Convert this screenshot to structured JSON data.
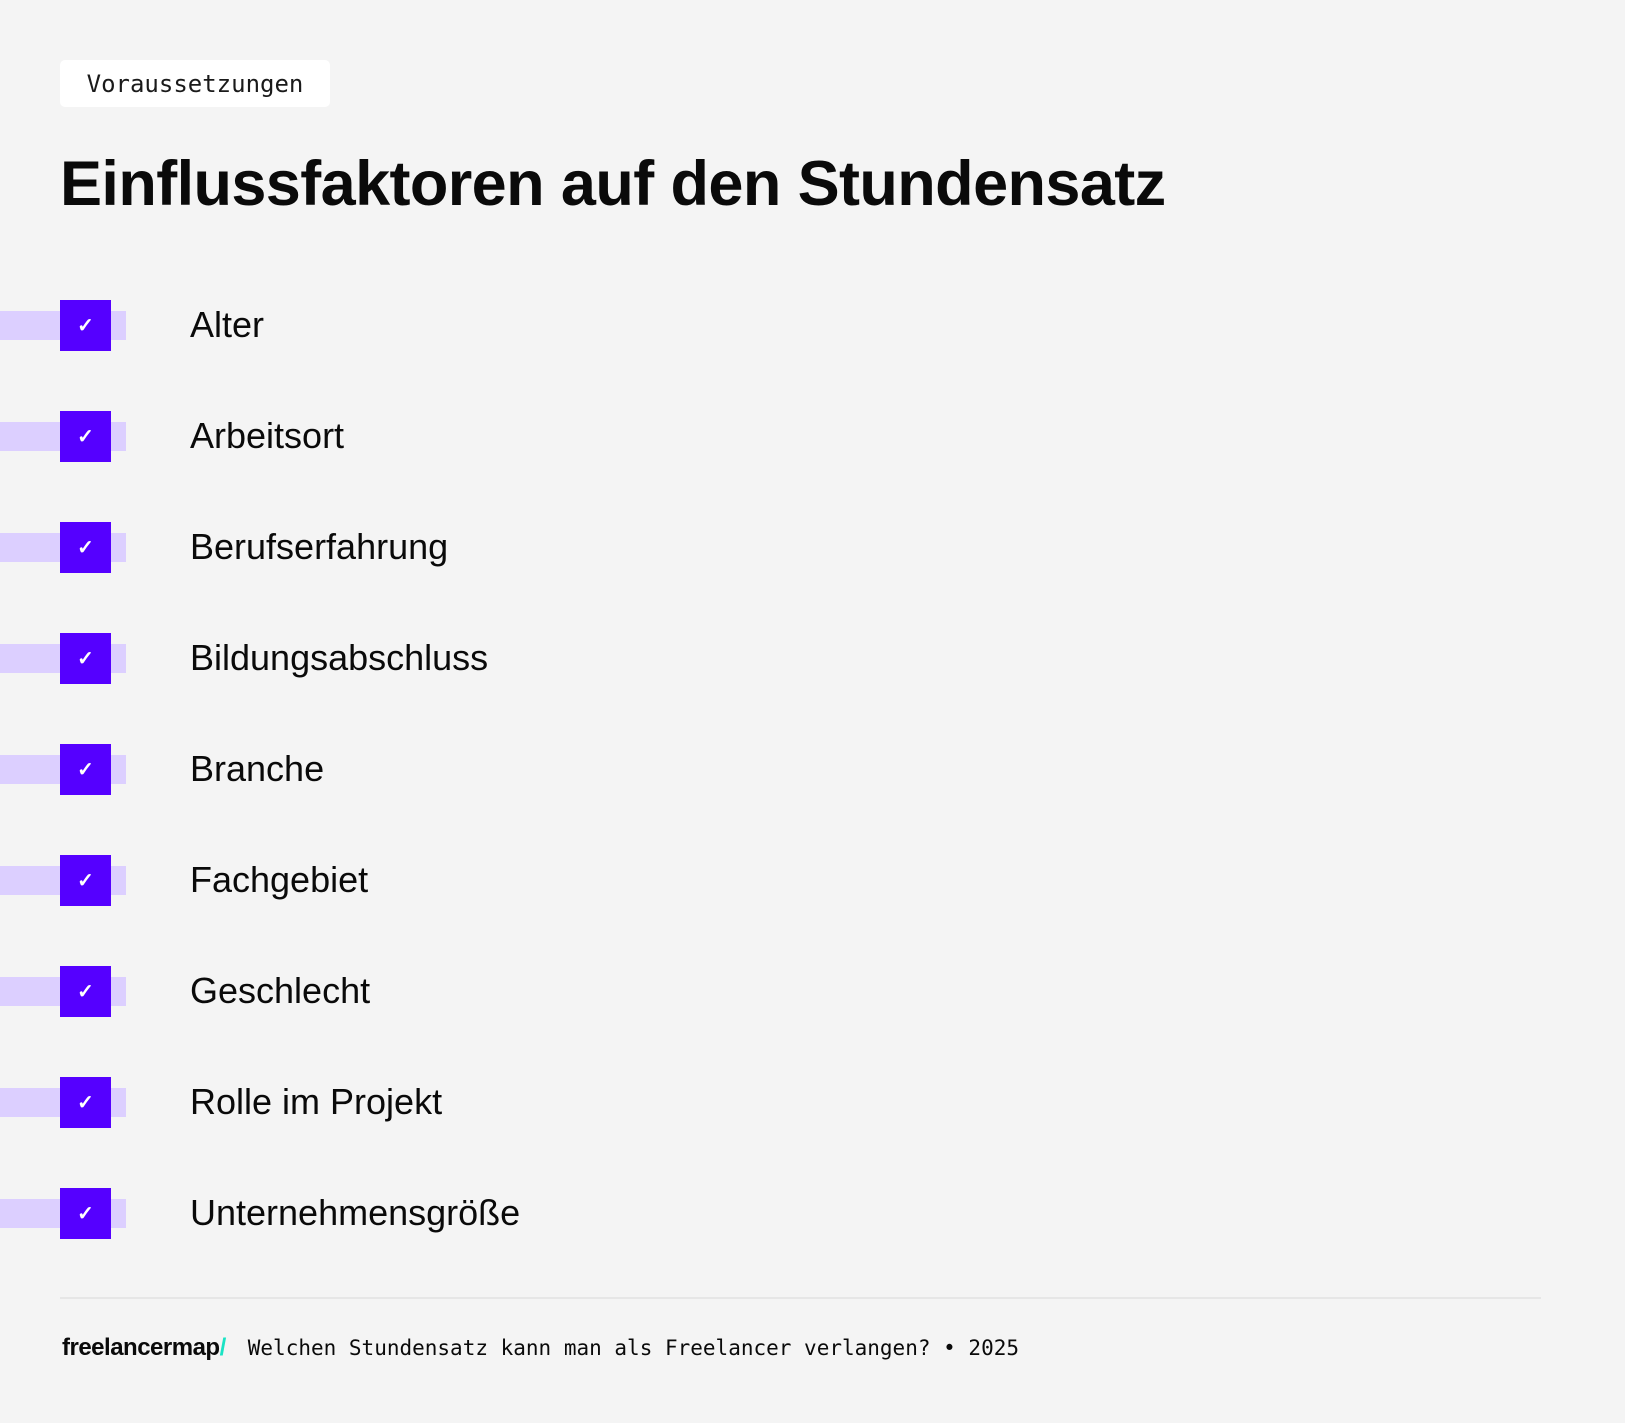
{
  "tag": "Voraussetzungen",
  "title": "Einflussfaktoren auf den Stundensatz",
  "colors": {
    "accent": "#5500ff",
    "accent_light": "#dccfff",
    "background": "#f4f4f4",
    "logo_slash": "#19e3c4"
  },
  "items": [
    {
      "label": "Alter",
      "checked": true,
      "icon": "check-icon"
    },
    {
      "label": "Arbeitsort",
      "checked": true,
      "icon": "check-icon"
    },
    {
      "label": "Berufserfahrung",
      "checked": true,
      "icon": "check-icon"
    },
    {
      "label": "Bildungsabschluss",
      "checked": true,
      "icon": "check-icon"
    },
    {
      "label": "Branche",
      "checked": true,
      "icon": "check-icon"
    },
    {
      "label": "Fachgebiet",
      "checked": true,
      "icon": "check-icon"
    },
    {
      "label": "Geschlecht",
      "checked": true,
      "icon": "check-icon"
    },
    {
      "label": "Rolle im Projekt",
      "checked": true,
      "icon": "check-icon"
    },
    {
      "label": "Unternehmensgröße",
      "checked": true,
      "icon": "check-icon"
    }
  ],
  "footer": {
    "logo_text": "freelancermap",
    "logo_slash": "/",
    "caption": "Welchen Stundensatz kann man als Freelancer verlangen? • 2025"
  }
}
